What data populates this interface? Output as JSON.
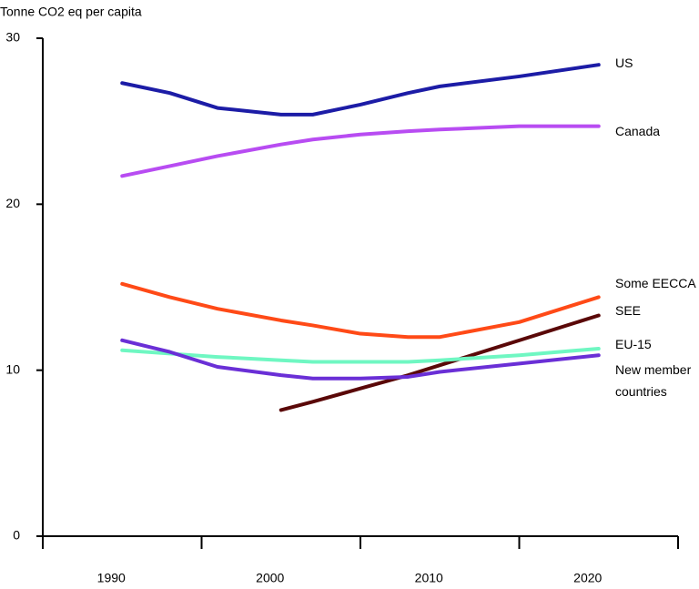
{
  "chart_data": {
    "type": "line",
    "ylabel": "Tonne CO2 eq per capita",
    "x": [
      1990,
      1993,
      1996,
      2000,
      2002,
      2005,
      2008,
      2010,
      2015,
      2020
    ],
    "series": [
      {
        "name": "US",
        "color": "#1c1ca6",
        "values": [
          27.3,
          26.7,
          25.8,
          25.4,
          25.4,
          26.0,
          26.7,
          27.1,
          27.7,
          28.4
        ]
      },
      {
        "name": "Canada",
        "color": "#b84cf2",
        "values": [
          21.7,
          22.3,
          22.9,
          23.6,
          23.9,
          24.2,
          24.4,
          24.5,
          24.7,
          24.7
        ]
      },
      {
        "name": "Some EECCA",
        "color": "#ff4a17",
        "values": [
          15.2,
          14.4,
          13.7,
          13.0,
          12.7,
          12.2,
          12.0,
          12.0,
          12.9,
          14.4
        ]
      },
      {
        "name": "SEE",
        "color": "#5a0808",
        "values": [
          null,
          null,
          null,
          7.6,
          8.1,
          8.9,
          9.7,
          10.3,
          11.8,
          13.3
        ]
      },
      {
        "name": "EU-15",
        "color": "#6ff7c2",
        "values": [
          11.2,
          11.0,
          10.8,
          10.6,
          10.5,
          10.5,
          10.5,
          10.6,
          10.9,
          11.3
        ]
      },
      {
        "name": "New member countries",
        "color": "#6a2fd6",
        "values": [
          11.8,
          11.1,
          10.2,
          9.7,
          9.5,
          9.5,
          9.6,
          9.9,
          10.4,
          10.9
        ]
      }
    ],
    "xlim": [
      1985,
      2025
    ],
    "xticks": [
      1990,
      2000,
      2010,
      2020
    ],
    "xtick_marks": [
      1985,
      1995,
      2005,
      2015,
      2025
    ],
    "ylim": [
      0,
      30
    ],
    "yticks": [
      0,
      10,
      20,
      30
    ],
    "grid": false
  }
}
